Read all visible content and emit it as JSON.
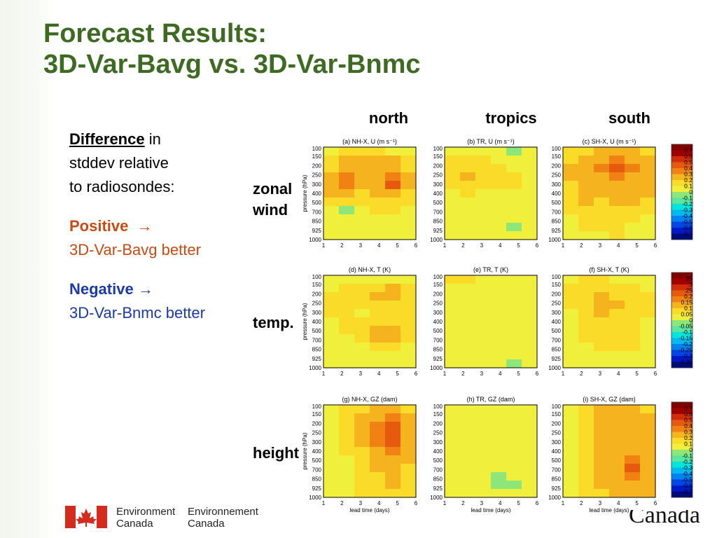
{
  "slide": {
    "title_line1": "Forecast Results:",
    "title_line2": "3D-Var-Bavg vs. 3D-Var-Bnmc"
  },
  "legend": {
    "difference_word": "Difference",
    "difference_rest": " in",
    "line2": "stddev relative",
    "line3": "to radiosondes:",
    "positive_label": "Positive",
    "positive_arrow": "→",
    "positive_desc": "3D-Var-Bavg better",
    "negative_label": "Negative",
    "negative_arrow": "→",
    "negative_desc": "3D-Var-Bnmc better"
  },
  "columns": [
    "north",
    "tropics",
    "south"
  ],
  "rows": [
    {
      "label_line1": "zonal",
      "label_line2": "wind"
    },
    {
      "label_line1": "temp.",
      "label_line2": ""
    },
    {
      "label_line1": "height",
      "label_line2": ""
    }
  ],
  "footer": {
    "en_line1": "Environment",
    "en_line2": "Canada",
    "fr_line1": "Environnement",
    "fr_line2": "Canada",
    "wordmark": "Canada"
  },
  "colors": {
    "title_green": "#3d6b22",
    "positive": "#c84b13",
    "negative": "#1b3aa7"
  },
  "chart_data": [
    {
      "type": "heatmap",
      "title": "(a) NH-X, U (m s⁻¹)",
      "xlabel": "",
      "ylabel": "pressure (hPa)",
      "x": [
        1,
        2,
        3,
        4,
        5,
        6
      ],
      "y": [
        100,
        150,
        200,
        250,
        300,
        400,
        500,
        700,
        850,
        925,
        1000
      ],
      "values": [
        [
          0.05,
          0.15,
          0.1,
          0.1,
          0.05,
          0.05
        ],
        [
          0.1,
          0.2,
          0.2,
          0.2,
          0.2,
          0.1
        ],
        [
          0.15,
          0.25,
          0.2,
          0.2,
          0.25,
          0.15
        ],
        [
          0.25,
          0.35,
          0.2,
          0.3,
          0.35,
          0.2
        ],
        [
          0.3,
          0.35,
          0.2,
          0.3,
          0.45,
          0.2
        ],
        [
          0.2,
          0.25,
          0.15,
          0.2,
          0.3,
          0.15
        ],
        [
          0.1,
          0.15,
          0.1,
          0.1,
          0.15,
          0.1
        ],
        [
          0.05,
          -0.05,
          0.05,
          0.1,
          0.1,
          0.05
        ],
        [
          0.05,
          0.05,
          0.05,
          0.05,
          0.05,
          0.05
        ],
        [
          0.05,
          0.05,
          0.05,
          0.05,
          0.05,
          0.05
        ],
        [
          0.05,
          0.05,
          0.05,
          0.05,
          0.05,
          0.05
        ]
      ]
    },
    {
      "type": "heatmap",
      "title": "(b) TR, U (m s⁻¹)",
      "xlabel": "",
      "ylabel": "",
      "x": [
        1,
        2,
        3,
        4,
        5,
        6
      ],
      "y": [
        100,
        150,
        200,
        250,
        300,
        400,
        500,
        700,
        850,
        925,
        1000
      ],
      "values": [
        [
          0.05,
          0.05,
          0.05,
          0.05,
          -0.1,
          0.05
        ],
        [
          0.15,
          0.1,
          0.1,
          0.05,
          0.05,
          0.05
        ],
        [
          0.15,
          0.15,
          0.15,
          0.1,
          0.05,
          0.05
        ],
        [
          0.15,
          0.2,
          0.15,
          0.1,
          0.1,
          0.05
        ],
        [
          0.1,
          0.15,
          0.15,
          0.1,
          0.1,
          0.05
        ],
        [
          0.05,
          0.1,
          0.05,
          0.05,
          0.05,
          0.05
        ],
        [
          0.05,
          0.05,
          0.05,
          0.05,
          0.05,
          0.05
        ],
        [
          0.05,
          0.05,
          0.05,
          0.05,
          0.05,
          0.05
        ],
        [
          0.05,
          0.05,
          0.05,
          0.05,
          0.05,
          0.05
        ],
        [
          0.05,
          0.05,
          0.05,
          0.05,
          -0.1,
          0.05
        ],
        [
          0.05,
          0.05,
          0.05,
          0.05,
          0.05,
          0.05
        ]
      ]
    },
    {
      "type": "heatmap",
      "title": "(c) SH-X, U (m s⁻¹)",
      "xlabel": "",
      "ylabel": "",
      "x": [
        1,
        2,
        3,
        4,
        5,
        6
      ],
      "y": [
        100,
        150,
        200,
        250,
        300,
        400,
        500,
        700,
        850,
        925,
        1000
      ],
      "values": [
        [
          0.1,
          0.15,
          0.2,
          0.2,
          0.2,
          0.15
        ],
        [
          0.15,
          0.25,
          0.3,
          0.35,
          0.3,
          0.2
        ],
        [
          0.2,
          0.25,
          0.35,
          0.45,
          0.35,
          0.25
        ],
        [
          0.2,
          0.25,
          0.3,
          0.35,
          0.3,
          0.25
        ],
        [
          0.1,
          0.2,
          0.25,
          0.3,
          0.25,
          0.2
        ],
        [
          0.15,
          0.2,
          0.2,
          0.25,
          0.25,
          0.2
        ],
        [
          0.15,
          0.2,
          0.15,
          0.2,
          0.2,
          0.15
        ],
        [
          0.1,
          0.15,
          0.15,
          0.15,
          0.1,
          0.1
        ],
        [
          0.05,
          0.1,
          0.1,
          0.1,
          0.1,
          0.05
        ],
        [
          0.05,
          0.1,
          0.1,
          0.1,
          0.05,
          0.05
        ],
        [
          0.05,
          0.05,
          0.05,
          0.1,
          0.05,
          0.05
        ]
      ]
    },
    {
      "type": "heatmap",
      "title": "(d) NH-X, T (K)",
      "xlabel": "",
      "ylabel": "pressure (hPa)",
      "x": [
        1,
        2,
        3,
        4,
        5,
        6
      ],
      "y": [
        100,
        150,
        200,
        250,
        300,
        400,
        500,
        700,
        850,
        925,
        1000
      ],
      "values": [
        [
          0.02,
          0.03,
          0.03,
          0.04,
          0.04,
          0.02
        ],
        [
          0.04,
          0.05,
          0.06,
          0.09,
          0.11,
          0.06
        ],
        [
          0.05,
          0.06,
          0.07,
          0.12,
          0.14,
          0.07
        ],
        [
          0.05,
          0.07,
          0.06,
          0.08,
          0.08,
          0.06
        ],
        [
          0.05,
          0.06,
          0.04,
          0.06,
          0.06,
          0.05
        ],
        [
          0.04,
          0.05,
          0.05,
          0.06,
          0.06,
          0.05
        ],
        [
          0.03,
          0.05,
          0.05,
          0.1,
          0.11,
          0.06
        ],
        [
          0.02,
          0.03,
          0.05,
          0.12,
          0.14,
          0.06
        ],
        [
          0.02,
          0.03,
          0.04,
          0.08,
          0.09,
          0.04
        ],
        [
          0.02,
          0.02,
          0.03,
          0.04,
          0.04,
          0.02
        ],
        [
          0.01,
          0.01,
          0.02,
          0.02,
          0.02,
          0.01
        ]
      ]
    },
    {
      "type": "heatmap",
      "title": "(e) TR, T (K)",
      "xlabel": "",
      "ylabel": "",
      "x": [
        1,
        2,
        3,
        4,
        5,
        6
      ],
      "y": [
        100,
        150,
        200,
        250,
        300,
        400,
        500,
        700,
        850,
        925,
        1000
      ],
      "values": [
        [
          0.06,
          0.05,
          0.03,
          0.02,
          0.02,
          0.02
        ],
        [
          0.03,
          0.02,
          0.02,
          0.02,
          0.02,
          0.02
        ],
        [
          0.02,
          0.02,
          0.02,
          0.02,
          0.02,
          0.02
        ],
        [
          0.02,
          0.02,
          0.02,
          0.02,
          0.02,
          0.02
        ],
        [
          0.02,
          0.02,
          0.02,
          0.02,
          0.02,
          0.02
        ],
        [
          0.02,
          0.02,
          0.02,
          0.02,
          0.02,
          0.02
        ],
        [
          0.02,
          0.02,
          0.02,
          0.02,
          0.02,
          0.02
        ],
        [
          0.02,
          0.02,
          0.02,
          0.02,
          0.02,
          0.02
        ],
        [
          0.02,
          0.02,
          0.02,
          0.02,
          0.02,
          0.02
        ],
        [
          0.02,
          0.02,
          0.02,
          0.02,
          0.02,
          0.02
        ],
        [
          0.02,
          0.02,
          0.02,
          0.02,
          -0.02,
          0.02
        ]
      ]
    },
    {
      "type": "heatmap",
      "title": "(f) SH-X, T (K)",
      "xlabel": "",
      "ylabel": "",
      "x": [
        1,
        2,
        3,
        4,
        5,
        6
      ],
      "y": [
        100,
        150,
        200,
        250,
        300,
        400,
        500,
        700,
        850,
        925,
        1000
      ],
      "values": [
        [
          0.03,
          0.05,
          0.05,
          0.04,
          0.04,
          0.03
        ],
        [
          0.05,
          0.07,
          0.08,
          0.06,
          0.05,
          0.04
        ],
        [
          0.05,
          0.08,
          0.1,
          0.09,
          0.06,
          0.05
        ],
        [
          0.05,
          0.09,
          0.11,
          0.1,
          0.07,
          0.05
        ],
        [
          0.04,
          0.08,
          0.1,
          0.09,
          0.07,
          0.05
        ],
        [
          0.03,
          0.07,
          0.08,
          0.08,
          0.06,
          0.04
        ],
        [
          0.02,
          0.06,
          0.08,
          0.07,
          0.06,
          0.04
        ],
        [
          0.02,
          0.05,
          0.07,
          0.07,
          0.06,
          0.04
        ],
        [
          0.02,
          0.04,
          0.06,
          0.05,
          0.05,
          0.03
        ],
        [
          0.02,
          0.03,
          0.04,
          0.04,
          0.04,
          0.03
        ],
        [
          0.01,
          0.02,
          0.03,
          0.03,
          0.03,
          0.02
        ]
      ]
    },
    {
      "type": "heatmap",
      "title": "(g) NH-X, GZ (dam)",
      "xlabel": "lead time (days)",
      "ylabel": "pressure (hPa)",
      "x": [
        1,
        2,
        3,
        4,
        5,
        6
      ],
      "y": [
        100,
        150,
        200,
        250,
        300,
        400,
        500,
        700,
        850,
        925,
        1000
      ],
      "values": [
        [
          0.05,
          0.1,
          0.15,
          0.25,
          0.25,
          0.15
        ],
        [
          0.05,
          0.1,
          0.2,
          0.3,
          0.35,
          0.2
        ],
        [
          0.05,
          0.1,
          0.2,
          0.35,
          0.4,
          0.25
        ],
        [
          0.05,
          0.1,
          0.2,
          0.35,
          0.45,
          0.25
        ],
        [
          0.05,
          0.1,
          0.2,
          0.35,
          0.4,
          0.25
        ],
        [
          0.05,
          0.1,
          0.15,
          0.3,
          0.35,
          0.2
        ],
        [
          0.05,
          0.05,
          0.15,
          0.25,
          0.3,
          0.2
        ],
        [
          0.05,
          0.05,
          0.1,
          0.2,
          0.25,
          0.15
        ],
        [
          0.05,
          0.05,
          0.1,
          0.15,
          0.2,
          0.15
        ],
        [
          0.05,
          0.05,
          0.1,
          0.15,
          0.2,
          0.15
        ],
        [
          0.05,
          0.05,
          0.1,
          0.15,
          0.15,
          0.1
        ]
      ]
    },
    {
      "type": "heatmap",
      "title": "(h) TR, GZ (dam)",
      "xlabel": "lead time (days)",
      "ylabel": "",
      "x": [
        1,
        2,
        3,
        4,
        5,
        6
      ],
      "y": [
        100,
        150,
        200,
        250,
        300,
        400,
        500,
        700,
        850,
        925,
        1000
      ],
      "values": [
        [
          0.03,
          0.03,
          0.03,
          0.03,
          0.03,
          0.03
        ],
        [
          0.03,
          0.03,
          0.03,
          0.03,
          0.03,
          0.03
        ],
        [
          0.03,
          0.03,
          0.03,
          0.03,
          0.03,
          0.03
        ],
        [
          0.03,
          0.03,
          0.03,
          0.03,
          0.03,
          0.03
        ],
        [
          0.03,
          0.03,
          0.03,
          0.03,
          0.03,
          0.03
        ],
        [
          0.03,
          0.03,
          0.03,
          0.03,
          0.03,
          0.03
        ],
        [
          0.03,
          0.03,
          0.03,
          0.03,
          0.03,
          0.03
        ],
        [
          0.03,
          0.03,
          0.03,
          0.03,
          0.03,
          0.03
        ],
        [
          0.03,
          0.03,
          0.03,
          -0.1,
          0.03,
          0.03
        ],
        [
          0.03,
          0.03,
          0.03,
          -0.1,
          -0.05,
          0.03
        ],
        [
          0.03,
          0.03,
          0.03,
          0.03,
          0.03,
          0.03
        ]
      ]
    },
    {
      "type": "heatmap",
      "title": "(i) SH-X, GZ (dam)",
      "xlabel": "lead time (days)",
      "ylabel": "",
      "x": [
        1,
        2,
        3,
        4,
        5,
        6
      ],
      "y": [
        100,
        150,
        200,
        250,
        300,
        400,
        500,
        700,
        850,
        925,
        1000
      ],
      "values": [
        [
          0.05,
          0.15,
          0.2,
          0.2,
          0.25,
          0.15
        ],
        [
          0.05,
          0.15,
          0.2,
          0.25,
          0.3,
          0.2
        ],
        [
          0.05,
          0.15,
          0.2,
          0.25,
          0.3,
          0.2
        ],
        [
          0.05,
          0.15,
          0.2,
          0.25,
          0.3,
          0.25
        ],
        [
          0.05,
          0.15,
          0.2,
          0.25,
          0.3,
          0.25
        ],
        [
          0.05,
          0.15,
          0.2,
          0.25,
          0.3,
          0.25
        ],
        [
          0.05,
          0.15,
          0.2,
          0.25,
          0.35,
          0.25
        ],
        [
          0.05,
          0.15,
          0.2,
          0.3,
          0.4,
          0.3
        ],
        [
          0.05,
          0.15,
          0.2,
          0.25,
          0.35,
          0.3
        ],
        [
          0.05,
          0.15,
          0.2,
          0.25,
          0.3,
          0.25
        ],
        [
          0.05,
          0.1,
          0.15,
          0.2,
          0.25,
          0.2
        ]
      ]
    }
  ],
  "colorbars": [
    {
      "labels": [
        "0.7",
        "0.6",
        "0.5",
        "0.4",
        "0.3",
        "0.2",
        "0.1",
        "0",
        "-0.1",
        "-0.2",
        "-0.3",
        "-0.4",
        "-0.5",
        "-0.6",
        "-0.7"
      ],
      "shown": [
        "0.7",
        "0.6",
        "0.5",
        "0.4",
        "0.3",
        "0.2",
        "0.1",
        "0",
        "-0.1",
        "-0.2",
        "-0.3",
        "-0.4",
        "-0.5",
        "-0.6",
        "-0.7"
      ]
    },
    {
      "labels": [
        "0.35",
        "0.3",
        "0.25",
        "0.2",
        "0.15",
        "0.1",
        "0.05",
        "0",
        "-0.05",
        "-0.1",
        "-0.15",
        "-0.2",
        "-0.25",
        "-0.3",
        "-0.35"
      ],
      "shown": [
        ".35",
        ".3",
        ".25",
        "0.2",
        "0.15",
        "0.1",
        "0.05",
        "0",
        "-0.05",
        "-0.1",
        "-0.15",
        "-0.2",
        "-0.25",
        "-0.3",
        "-0.35"
      ]
    },
    {
      "labels": [
        "0.7",
        "0.6",
        "0.5",
        "0.4",
        "0.3",
        "0.2",
        "0.1",
        "0",
        "-0.1",
        "-0.2",
        "-0.3",
        "-0.4",
        "-0.5",
        "-0.6",
        "-0.7"
      ],
      "shown": [
        "0.7",
        "0.6",
        "0.5",
        "0.4",
        "0.3",
        "0.2",
        "0.1",
        "0",
        "-0.1",
        "-0.2",
        "-0.3",
        "-0.4",
        "-0.5",
        "-0.6",
        "-0.7"
      ]
    }
  ]
}
